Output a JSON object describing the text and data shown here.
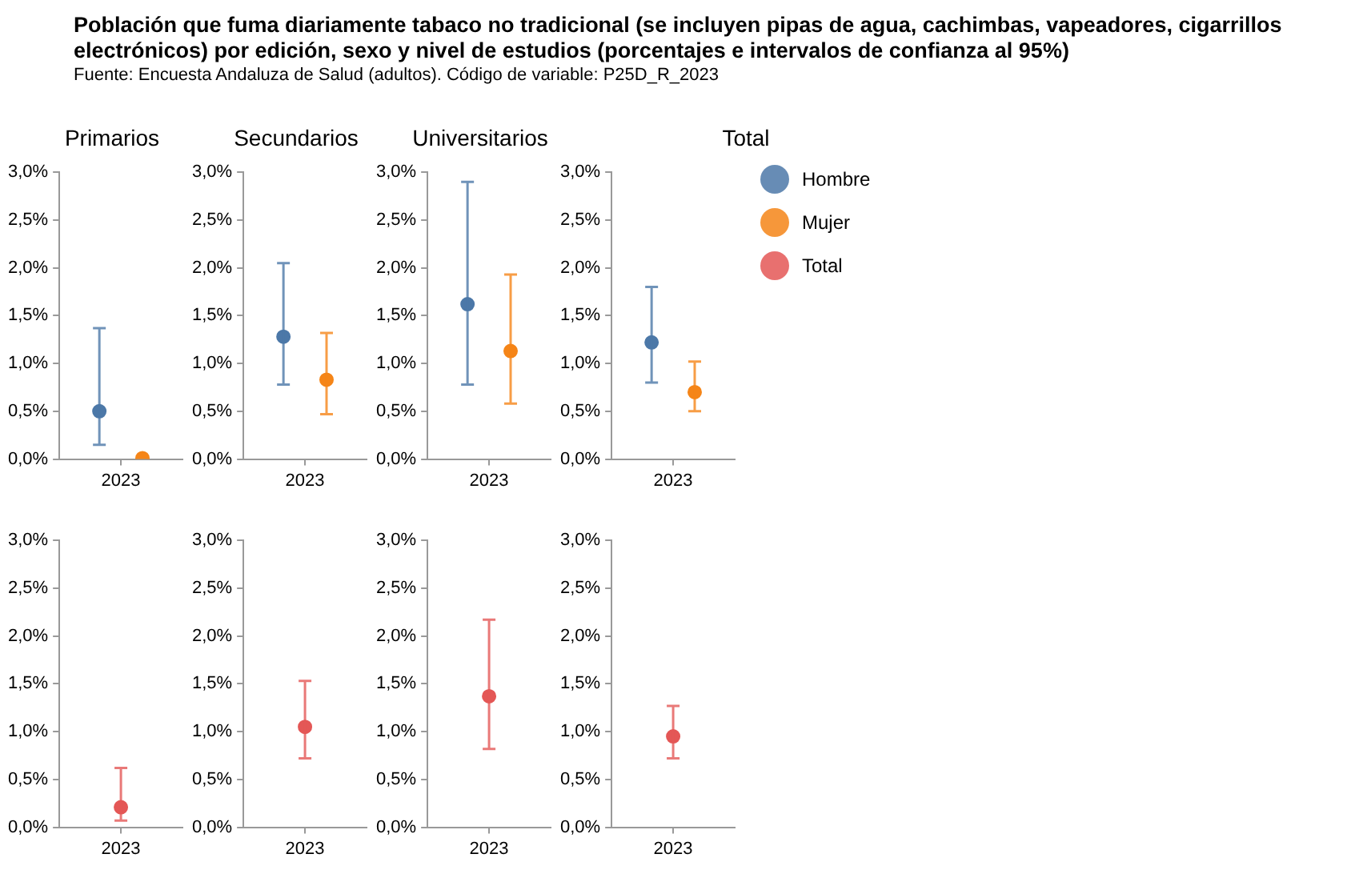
{
  "chart_data": [
    {
      "type": "other",
      "title": "Población que fuma diariamente tabaco no tradicional (se incluyen pipas de agua, cachimbas, vapeadores, cigarrillos electrónicos) por edición, sexo y nivel de estudios (porcentajes e intervalos de confianza al 95%)",
      "subtitle": "Fuente: Encuesta Andaluza de Salud (adultos). Código de variable: P25D_R_2023"
    },
    {
      "type": "scatter",
      "title": "Primarios",
      "categories": [
        "2023"
      ],
      "ylim": [
        0,
        3
      ],
      "yticks": [
        {
          "value": 0,
          "label": "0,0%"
        },
        {
          "value": 0.5,
          "label": "0,5%"
        },
        {
          "value": 1,
          "label": "1,0%"
        },
        {
          "value": 1.5,
          "label": "1,5%"
        },
        {
          "value": 2,
          "label": "2,0%"
        },
        {
          "value": 2.5,
          "label": "2,5%"
        },
        {
          "value": 3,
          "label": "3,0%"
        }
      ],
      "marker": "circle",
      "series": [
        {
          "color": "#4c78a8",
          "values": [
            0.5
          ],
          "errors": [
            [
              0.15,
              1.37
            ]
          ]
        },
        {
          "color": "#f58518",
          "values": [
            0.01
          ],
          "errors": [
            null
          ]
        }
      ]
    },
    {
      "type": "scatter",
      "title": "Secundarios",
      "categories": [
        "2023"
      ],
      "ylim": [
        0,
        3
      ],
      "yticks": [
        {
          "value": 0,
          "label": "0,0%"
        },
        {
          "value": 0.5,
          "label": "0,5%"
        },
        {
          "value": 1,
          "label": "1,0%"
        },
        {
          "value": 1.5,
          "label": "1,5%"
        },
        {
          "value": 2,
          "label": "2,0%"
        },
        {
          "value": 2.5,
          "label": "2,5%"
        },
        {
          "value": 3,
          "label": "3,0%"
        }
      ],
      "marker": "circle",
      "series": [
        {
          "color": "#4c78a8",
          "values": [
            1.28
          ],
          "errors": [
            [
              0.78,
              2.05
            ]
          ]
        },
        {
          "color": "#f58518",
          "values": [
            0.83
          ],
          "errors": [
            [
              0.47,
              1.32
            ]
          ]
        }
      ]
    },
    {
      "type": "scatter",
      "title": "Universitarios",
      "categories": [
        "2023"
      ],
      "ylim": [
        0,
        3
      ],
      "yticks": [
        {
          "value": 0,
          "label": "0,0%"
        },
        {
          "value": 0.5,
          "label": "0,5%"
        },
        {
          "value": 1,
          "label": "1,0%"
        },
        {
          "value": 1.5,
          "label": "1,5%"
        },
        {
          "value": 2,
          "label": "2,0%"
        },
        {
          "value": 2.5,
          "label": "2,5%"
        },
        {
          "value": 3,
          "label": "3,0%"
        }
      ],
      "marker": "circle",
      "series": [
        {
          "color": "#4c78a8",
          "values": [
            1.62
          ],
          "errors": [
            [
              0.78,
              2.9
            ]
          ]
        },
        {
          "color": "#f58518",
          "values": [
            1.13
          ],
          "errors": [
            [
              0.58,
              1.93
            ]
          ]
        }
      ]
    },
    {
      "type": "scatter",
      "title": "Total",
      "categories": [
        "2023"
      ],
      "ylim": [
        0,
        3
      ],
      "yticks": [
        {
          "value": 0,
          "label": "0,0%"
        },
        {
          "value": 0.5,
          "label": "0,5%"
        },
        {
          "value": 1,
          "label": "1,0%"
        },
        {
          "value": 1.5,
          "label": "1,5%"
        },
        {
          "value": 2,
          "label": "2,0%"
        },
        {
          "value": 2.5,
          "label": "2,5%"
        },
        {
          "value": 3,
          "label": "3,0%"
        }
      ],
      "marker": "circle",
      "legend": "right",
      "series": [
        {
          "name": "Hombre",
          "color": "#4c78a8",
          "values": [
            1.22
          ],
          "errors": [
            [
              0.8,
              1.8
            ]
          ]
        },
        {
          "name": "Mujer",
          "color": "#f58518",
          "values": [
            0.7
          ],
          "errors": [
            [
              0.5,
              1.02
            ]
          ]
        },
        {
          "name": "Total",
          "color": "#e45756",
          "values": [
            null
          ],
          "errors": [
            null
          ]
        }
      ]
    },
    {
      "type": "scatter",
      "categories": [
        "2023"
      ],
      "ylim": [
        0,
        3
      ],
      "yticks": [
        {
          "value": 0,
          "label": "0,0%"
        },
        {
          "value": 0.5,
          "label": "0,5%"
        },
        {
          "value": 1,
          "label": "1,0%"
        },
        {
          "value": 1.5,
          "label": "1,5%"
        },
        {
          "value": 2,
          "label": "2,0%"
        },
        {
          "value": 2.5,
          "label": "2,5%"
        },
        {
          "value": 3,
          "label": "3,0%"
        }
      ],
      "marker": "circle",
      "series": [
        {
          "color": "#e45756",
          "values": [
            0.21
          ],
          "errors": [
            [
              0.07,
              0.62
            ]
          ]
        }
      ]
    },
    {
      "type": "scatter",
      "categories": [
        "2023"
      ],
      "ylim": [
        0,
        3
      ],
      "yticks": [
        {
          "value": 0,
          "label": "0,0%"
        },
        {
          "value": 0.5,
          "label": "0,5%"
        },
        {
          "value": 1,
          "label": "1,0%"
        },
        {
          "value": 1.5,
          "label": "1,5%"
        },
        {
          "value": 2,
          "label": "2,0%"
        },
        {
          "value": 2.5,
          "label": "2,5%"
        },
        {
          "value": 3,
          "label": "3,0%"
        }
      ],
      "marker": "circle",
      "series": [
        {
          "color": "#e45756",
          "values": [
            1.05
          ],
          "errors": [
            [
              0.72,
              1.53
            ]
          ]
        }
      ]
    },
    {
      "type": "scatter",
      "categories": [
        "2023"
      ],
      "ylim": [
        0,
        3
      ],
      "yticks": [
        {
          "value": 0,
          "label": "0,0%"
        },
        {
          "value": 0.5,
          "label": "0,5%"
        },
        {
          "value": 1,
          "label": "1,0%"
        },
        {
          "value": 1.5,
          "label": "1,5%"
        },
        {
          "value": 2,
          "label": "2,0%"
        },
        {
          "value": 2.5,
          "label": "2,5%"
        },
        {
          "value": 3,
          "label": "3,0%"
        }
      ],
      "marker": "circle",
      "series": [
        {
          "color": "#e45756",
          "values": [
            1.37
          ],
          "errors": [
            [
              0.82,
              2.17
            ]
          ]
        }
      ]
    },
    {
      "type": "scatter",
      "categories": [
        "2023"
      ],
      "ylim": [
        0,
        3
      ],
      "yticks": [
        {
          "value": 0,
          "label": "0,0%"
        },
        {
          "value": 0.5,
          "label": "0,5%"
        },
        {
          "value": 1,
          "label": "1,0%"
        },
        {
          "value": 1.5,
          "label": "1,5%"
        },
        {
          "value": 2,
          "label": "2,0%"
        },
        {
          "value": 2.5,
          "label": "2,5%"
        },
        {
          "value": 3,
          "label": "3,0%"
        }
      ],
      "marker": "circle",
      "series": [
        {
          "color": "#e45756",
          "values": [
            0.95
          ],
          "errors": [
            [
              0.72,
              1.27
            ]
          ]
        }
      ]
    }
  ]
}
